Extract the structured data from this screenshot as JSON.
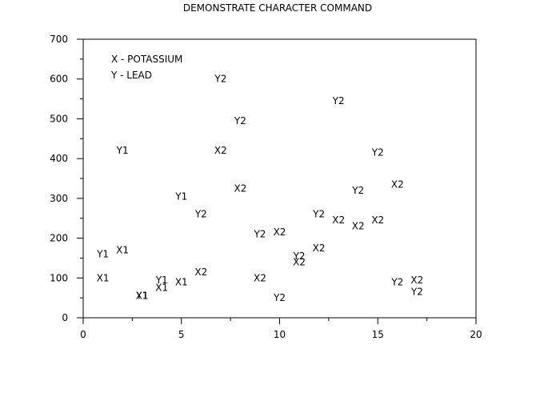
{
  "chart_data": {
    "type": "scatter",
    "title": "DEMONSTRATE CHARACTER COMMAND",
    "xlabel": "",
    "ylabel": "",
    "xlim": [
      0,
      20
    ],
    "ylim": [
      0,
      700
    ],
    "x_ticks": [
      0,
      5,
      10,
      15,
      20
    ],
    "y_ticks": [
      0,
      100,
      200,
      300,
      400,
      500,
      600,
      700
    ],
    "grid": false,
    "legend": {
      "placement": "top-left",
      "entries": [
        "X - POTASSIUM",
        "Y - LEAD"
      ]
    },
    "series": [
      {
        "marker": "X1",
        "points": [
          {
            "x": 1,
            "y": 100
          },
          {
            "x": 2,
            "y": 170
          },
          {
            "x": 3,
            "y": 55
          },
          {
            "x": 4,
            "y": 75
          },
          {
            "x": 5,
            "y": 90
          }
        ]
      },
      {
        "marker": "Y1",
        "points": [
          {
            "x": 1,
            "y": 160
          },
          {
            "x": 2,
            "y": 420
          },
          {
            "x": 3,
            "y": 55
          },
          {
            "x": 4,
            "y": 95
          },
          {
            "x": 5,
            "y": 305
          }
        ]
      },
      {
        "marker": "X2",
        "points": [
          {
            "x": 6,
            "y": 115
          },
          {
            "x": 7,
            "y": 420
          },
          {
            "x": 8,
            "y": 325
          },
          {
            "x": 9,
            "y": 100
          },
          {
            "x": 10,
            "y": 215
          },
          {
            "x": 11,
            "y": 140
          },
          {
            "x": 12,
            "y": 175
          },
          {
            "x": 13,
            "y": 245
          },
          {
            "x": 14,
            "y": 230
          },
          {
            "x": 15,
            "y": 245
          },
          {
            "x": 16,
            "y": 335
          },
          {
            "x": 17,
            "y": 95
          }
        ]
      },
      {
        "marker": "Y2",
        "points": [
          {
            "x": 6,
            "y": 260
          },
          {
            "x": 7,
            "y": 600
          },
          {
            "x": 8,
            "y": 495
          },
          {
            "x": 9,
            "y": 210
          },
          {
            "x": 10,
            "y": 50
          },
          {
            "x": 11,
            "y": 155
          },
          {
            "x": 12,
            "y": 260
          },
          {
            "x": 13,
            "y": 545
          },
          {
            "x": 14,
            "y": 320
          },
          {
            "x": 15,
            "y": 415
          },
          {
            "x": 16,
            "y": 90
          },
          {
            "x": 17,
            "y": 65
          }
        ]
      }
    ]
  }
}
